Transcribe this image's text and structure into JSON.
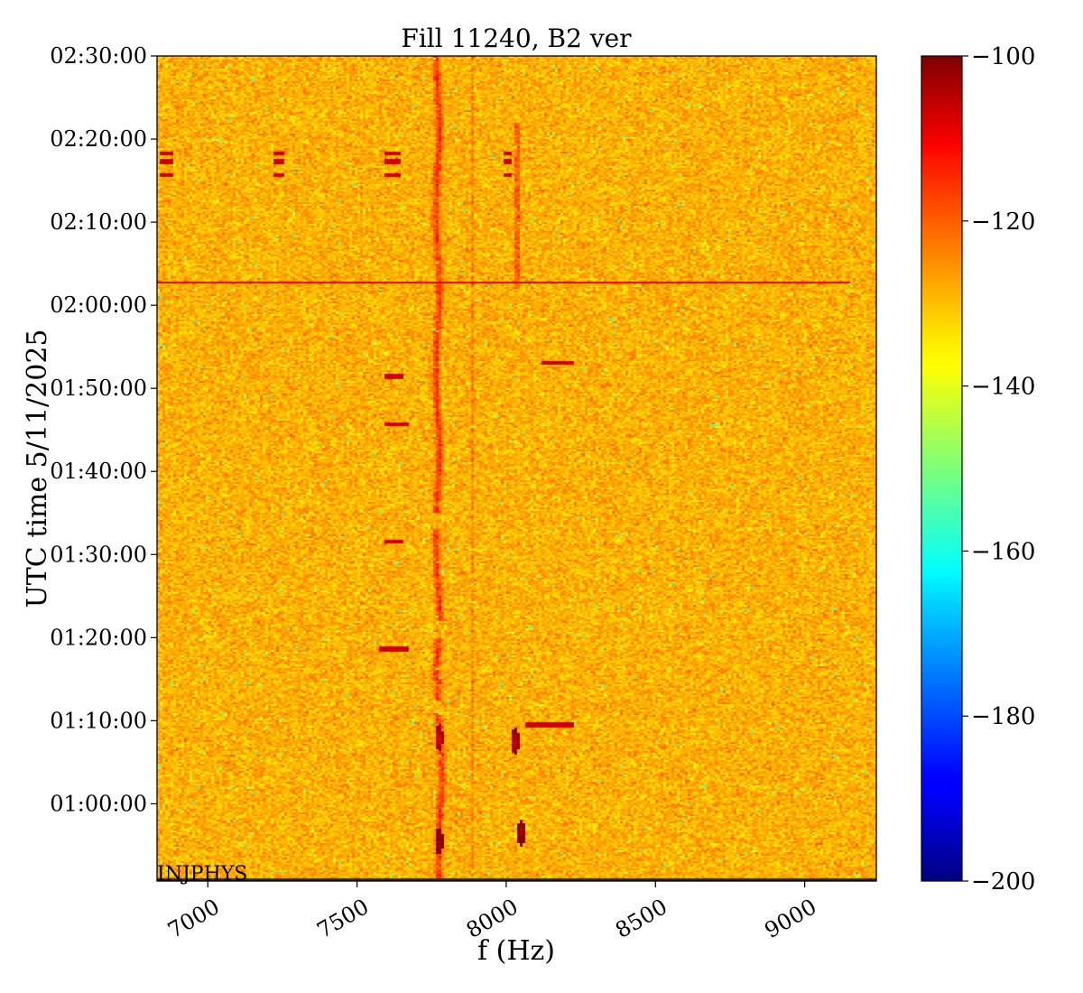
{
  "chart_data": {
    "type": "heatmap",
    "title": "Fill 11240, B2 ver",
    "xlabel": "f (Hz)",
    "ylabel": "UTC time 5/11/2025",
    "corner_label": "INJPHYS",
    "xlim": [
      6830,
      9240
    ],
    "ylim_minutes": [
      50.7,
      150
    ],
    "x_ticks": [
      7000,
      7500,
      8000,
      8500,
      9000
    ],
    "x_tick_labels": [
      "7000",
      "7500",
      "8000",
      "8500",
      "9000"
    ],
    "y_ticks_minutes": [
      60,
      70,
      80,
      90,
      100,
      110,
      120,
      130,
      140,
      150
    ],
    "y_tick_labels": [
      "01:00:00",
      "01:10:00",
      "01:20:00",
      "01:30:00",
      "01:40:00",
      "01:50:00",
      "02:00:00",
      "02:10:00",
      "02:20:00",
      "02:30:00"
    ],
    "colorbar": {
      "colormap": "jet",
      "vmin": -200,
      "vmax": -100,
      "ticks": [
        -100,
        -120,
        -140,
        -160,
        -180,
        -200
      ],
      "tick_labels": [
        "−100",
        "−120",
        "−140",
        "−160",
        "−180",
        "−200"
      ]
    },
    "background_level": -130,
    "features": {
      "strong_line_center_hz": 7770,
      "weak_line_center_hz": 7890,
      "line_8035_center_hz": 8035,
      "blobs": [
        {
          "f": 7775,
          "t": 55.5,
          "level": -104
        },
        {
          "f": 8050,
          "t": 56.5,
          "level": -104
        },
        {
          "f": 7775,
          "t": 68,
          "level": -110
        },
        {
          "f": 8030,
          "t": 67.5,
          "level": -108
        }
      ],
      "horizontal_line_minutes": 122.7,
      "horizontal_line_level": -110
    }
  }
}
